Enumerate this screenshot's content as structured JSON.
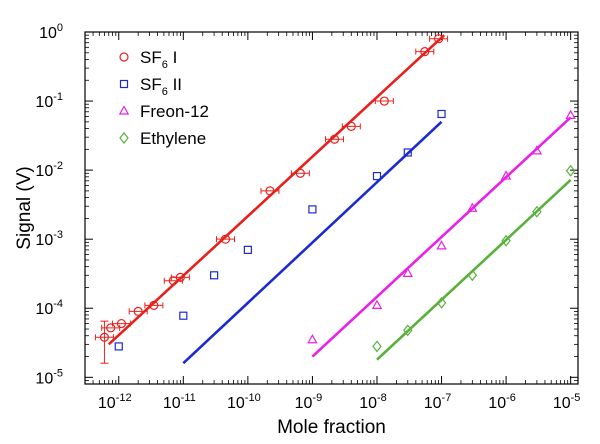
{
  "chart_data": {
    "type": "scatter",
    "xlabel": "Mole fraction",
    "ylabel": "Signal (V)",
    "x_scale": "log",
    "y_scale": "log",
    "xlim": [
      3e-13,
      1.3e-05
    ],
    "ylim": [
      8e-06,
      1.0
    ],
    "x_ticks": [
      {
        "base": "10",
        "exp": "-12",
        "value": 1e-12
      },
      {
        "base": "10",
        "exp": "-11",
        "value": 1e-11
      },
      {
        "base": "10",
        "exp": "-10",
        "value": 1e-10
      },
      {
        "base": "10",
        "exp": "-9",
        "value": 1e-09
      },
      {
        "base": "10",
        "exp": "-8",
        "value": 1e-08
      },
      {
        "base": "10",
        "exp": "-7",
        "value": 1e-07
      },
      {
        "base": "10",
        "exp": "-6",
        "value": 1e-06
      },
      {
        "base": "10",
        "exp": "-5",
        "value": 1e-05
      }
    ],
    "y_ticks": [
      {
        "base": "10",
        "exp": "0",
        "value": 1
      },
      {
        "base": "10",
        "exp": "-1",
        "value": 0.1
      },
      {
        "base": "10",
        "exp": "-2",
        "value": 0.01
      },
      {
        "base": "10",
        "exp": "-3",
        "value": 0.001
      },
      {
        "base": "10",
        "exp": "-4",
        "value": 0.0001
      },
      {
        "base": "10",
        "exp": "-5",
        "value": 1e-05
      }
    ],
    "legend_position": "top-left",
    "series": [
      {
        "name": "SF6 I",
        "legend_main": "SF",
        "legend_sub": "6",
        "legend_suffix": " I",
        "marker": "circle",
        "color": "#e8201c",
        "x": [
          6e-13,
          7.5e-13,
          1.1e-12,
          2e-12,
          3.5e-12,
          7e-12,
          9e-12,
          4.5e-11,
          2.2e-10,
          6.5e-10,
          2.2e-09,
          4e-09,
          1.3e-08,
          5.5e-08,
          9e-08
        ],
        "y": [
          3.8e-05,
          5.2e-05,
          6e-05,
          9e-05,
          0.00011,
          0.00025,
          0.00028,
          0.001,
          0.005,
          0.009,
          0.028,
          0.043,
          0.1,
          0.52,
          0.8
        ],
        "fit": {
          "x": [
            7e-13,
            1.1e-07
          ],
          "y": [
            3e-05,
            0.9
          ]
        }
      },
      {
        "name": "SF6 II",
        "legend_main": "SF",
        "legend_sub": "6",
        "legend_suffix": " II",
        "marker": "square",
        "color": "#1c2bd0",
        "x": [
          1e-12,
          1e-11,
          3e-11,
          1e-10,
          1e-09,
          1e-08,
          3e-08,
          1e-07
        ],
        "y": [
          2.8e-05,
          7.8e-05,
          0.0003,
          0.0007,
          0.0027,
          0.0082,
          0.018,
          0.065
        ],
        "fit": {
          "x": [
            1e-11,
            1e-07
          ],
          "y": [
            1.6e-05,
            0.05
          ]
        }
      },
      {
        "name": "Freon-12",
        "legend_main": "Freon-12",
        "legend_sub": "",
        "legend_suffix": "",
        "marker": "triangle",
        "color": "#e820e8",
        "x": [
          1e-09,
          1e-08,
          3e-08,
          1e-07,
          3e-07,
          1e-06,
          3e-06,
          1e-05
        ],
        "y": [
          3.5e-05,
          0.00011,
          0.00032,
          0.0008,
          0.0028,
          0.0082,
          0.019,
          0.062
        ],
        "fit": {
          "x": [
            1e-09,
            1e-05
          ],
          "y": [
            2e-05,
            0.058
          ]
        }
      },
      {
        "name": "Ethylene",
        "legend_main": "Ethylene",
        "legend_sub": "",
        "legend_suffix": "",
        "marker": "diamond",
        "color": "#5ab03c",
        "x": [
          1e-08,
          3e-08,
          1e-07,
          3e-07,
          1e-06,
          3e-06,
          1e-05
        ],
        "y": [
          2.8e-05,
          4.8e-05,
          0.00012,
          0.0003,
          0.00095,
          0.0025,
          0.0098
        ],
        "fit": {
          "x": [
            1e-08,
            1e-05
          ],
          "y": [
            1.8e-05,
            0.0072
          ]
        }
      }
    ]
  }
}
